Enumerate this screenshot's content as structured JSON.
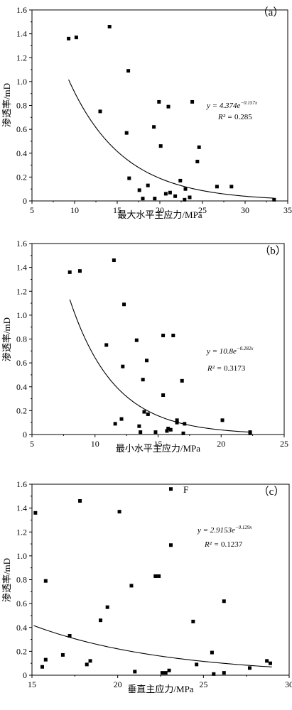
{
  "chart_data": [
    {
      "type": "scatter",
      "panel_label": "（a）",
      "xlabel": "最大水平主应力/MPa",
      "ylabel": "渗透率/mD",
      "xlim": [
        5,
        35
      ],
      "ylim": [
        0,
        1.6
      ],
      "xticks": [
        "5",
        "10",
        "15",
        "20",
        "25",
        "30",
        "35"
      ],
      "yticks": [
        "0",
        "0.2",
        "0.4",
        "0.6",
        "0.8",
        "1.0",
        "1.2",
        "1.4",
        "1.6"
      ],
      "points": [
        [
          9.3,
          1.36
        ],
        [
          10.2,
          1.37
        ],
        [
          14.1,
          1.46
        ],
        [
          16.3,
          1.09
        ],
        [
          13.0,
          0.75
        ],
        [
          19.9,
          0.83
        ],
        [
          23.8,
          0.83
        ],
        [
          21.0,
          0.79
        ],
        [
          16.1,
          0.57
        ],
        [
          19.3,
          0.62
        ],
        [
          20.1,
          0.46
        ],
        [
          24.6,
          0.45
        ],
        [
          24.4,
          0.33
        ],
        [
          16.4,
          0.19
        ],
        [
          22.4,
          0.17
        ],
        [
          18.6,
          0.13
        ],
        [
          26.7,
          0.12
        ],
        [
          28.4,
          0.12
        ],
        [
          17.6,
          0.09
        ],
        [
          23.0,
          0.1
        ],
        [
          20.7,
          0.06
        ],
        [
          21.2,
          0.07
        ],
        [
          18.0,
          0.02
        ],
        [
          19.4,
          0.02
        ],
        [
          21.8,
          0.04
        ],
        [
          23.5,
          0.03
        ],
        [
          22.9,
          0.01
        ],
        [
          33.4,
          0.01
        ]
      ],
      "fit": {
        "a": 4.374,
        "b": -0.157,
        "x_range": [
          9.3,
          33.4
        ]
      },
      "equation": {
        "main": "y = 4.374e",
        "exponent": "−0.157x",
        "r2_label": "R² = ",
        "r2": "0.285"
      }
    },
    {
      "type": "scatter",
      "panel_label": "（b）",
      "xlabel": "最小水平主应力/MPa",
      "ylabel": "渗透率/mD",
      "xlim": [
        5,
        25
      ],
      "ylim": [
        0,
        1.6
      ],
      "xticks": [
        "5",
        "10",
        "15",
        "20",
        "25"
      ],
      "yticks": [
        "0",
        "0.2",
        "0.4",
        "0.6",
        "0.8",
        "1.0",
        "1.2",
        "1.4",
        "1.6"
      ],
      "points": [
        [
          8.0,
          1.36
        ],
        [
          8.8,
          1.37
        ],
        [
          11.5,
          1.46
        ],
        [
          12.3,
          1.09
        ],
        [
          10.9,
          0.75
        ],
        [
          13.3,
          0.79
        ],
        [
          15.4,
          0.83
        ],
        [
          16.2,
          0.83
        ],
        [
          14.1,
          0.62
        ],
        [
          12.2,
          0.57
        ],
        [
          13.8,
          0.46
        ],
        [
          16.9,
          0.45
        ],
        [
          15.4,
          0.33
        ],
        [
          13.9,
          0.19
        ],
        [
          14.2,
          0.17
        ],
        [
          12.1,
          0.13
        ],
        [
          16.5,
          0.12
        ],
        [
          20.1,
          0.12
        ],
        [
          11.6,
          0.09
        ],
        [
          17.1,
          0.09
        ],
        [
          13.5,
          0.07
        ],
        [
          16.5,
          0.1
        ],
        [
          15.8,
          0.05
        ],
        [
          16.0,
          0.04
        ],
        [
          13.6,
          0.02
        ],
        [
          14.8,
          0.02
        ],
        [
          15.7,
          0.03
        ],
        [
          17.0,
          0.01
        ],
        [
          22.3,
          0.02
        ],
        [
          22.3,
          0.01
        ]
      ],
      "fit": {
        "a": 10.8,
        "b": -0.282,
        "x_range": [
          8.0,
          22.3
        ]
      },
      "equation": {
        "main": "y = 10.8e",
        "exponent": "−0.282x",
        "r2_label": "R² = ",
        "r2": "0.3173"
      }
    },
    {
      "type": "scatter",
      "panel_label": "（c）",
      "marker_label": "F",
      "xlabel": "垂直主应力/MPa",
      "ylabel": "渗透率/mD",
      "xlim": [
        15,
        30
      ],
      "ylim": [
        0,
        1.6
      ],
      "xticks": [
        "15",
        "20",
        "25",
        "30"
      ],
      "yticks": [
        "0",
        "0.2",
        "0.4",
        "0.6",
        "0.8",
        "1.0",
        "1.2",
        "1.4",
        "1.6"
      ],
      "points": [
        [
          15.2,
          1.36
        ],
        [
          17.8,
          1.46
        ],
        [
          20.1,
          1.37
        ],
        [
          23.1,
          1.56
        ],
        [
          23.1,
          1.09
        ],
        [
          15.8,
          0.79
        ],
        [
          22.2,
          0.83
        ],
        [
          22.4,
          0.83
        ],
        [
          20.8,
          0.75
        ],
        [
          26.2,
          0.62
        ],
        [
          19.4,
          0.57
        ],
        [
          19.0,
          0.46
        ],
        [
          24.4,
          0.45
        ],
        [
          17.2,
          0.33
        ],
        [
          25.5,
          0.19
        ],
        [
          16.8,
          0.17
        ],
        [
          15.8,
          0.13
        ],
        [
          18.4,
          0.12
        ],
        [
          28.7,
          0.12
        ],
        [
          18.2,
          0.09
        ],
        [
          24.6,
          0.09
        ],
        [
          28.9,
          0.1
        ],
        [
          15.6,
          0.07
        ],
        [
          27.7,
          0.06
        ],
        [
          21.0,
          0.03
        ],
        [
          23.0,
          0.04
        ],
        [
          22.6,
          0.02
        ],
        [
          22.8,
          0.02
        ],
        [
          25.6,
          0.01
        ],
        [
          26.2,
          0.02
        ]
      ],
      "fit": {
        "a": 2.9153,
        "b": -0.129,
        "x_range": [
          15.1,
          29.0
        ]
      },
      "equation": {
        "main": "y = 2.9153e",
        "exponent": "−0.129x",
        "r2_label": "R² = ",
        "r2": "0.1237"
      }
    }
  ]
}
